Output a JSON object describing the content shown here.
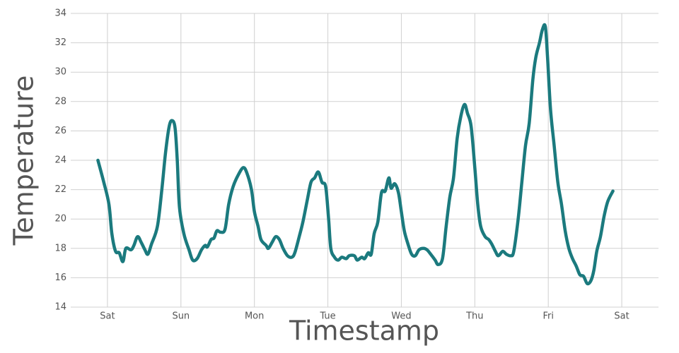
{
  "chart_data": {
    "type": "line",
    "x_label": "Timestamp",
    "y_label": "Temperature",
    "color": "#1b7a7e",
    "grid": true,
    "xlim": [
      -0.5,
      7.5
    ],
    "ylim": [
      14,
      34
    ],
    "xticks": [
      {
        "value": 0,
        "label": "Sat"
      },
      {
        "value": 1,
        "label": "Sun"
      },
      {
        "value": 2,
        "label": "Mon"
      },
      {
        "value": 3,
        "label": "Tue"
      },
      {
        "value": 4,
        "label": "Wed"
      },
      {
        "value": 5,
        "label": "Thu"
      },
      {
        "value": 6,
        "label": "Fri"
      },
      {
        "value": 7,
        "label": "Sat"
      }
    ],
    "yticks": [
      14,
      16,
      18,
      20,
      22,
      24,
      26,
      28,
      30,
      32,
      34
    ],
    "x": [
      -0.13,
      -0.05,
      0.02,
      0.06,
      0.11,
      0.16,
      0.21,
      0.25,
      0.32,
      0.36,
      0.41,
      0.46,
      0.51,
      0.55,
      0.6,
      0.68,
      0.74,
      0.79,
      0.84,
      0.88,
      0.92,
      0.95,
      0.98,
      1.04,
      1.11,
      1.16,
      1.22,
      1.28,
      1.33,
      1.36,
      1.41,
      1.45,
      1.49,
      1.54,
      1.6,
      1.65,
      1.71,
      1.78,
      1.85,
      1.9,
      1.96,
      2.0,
      2.05,
      2.09,
      2.16,
      2.19,
      2.24,
      2.29,
      2.34,
      2.39,
      2.45,
      2.51,
      2.55,
      2.61,
      2.66,
      2.72,
      2.77,
      2.82,
      2.87,
      2.92,
      2.97,
      3.01,
      3.04,
      3.09,
      3.14,
      3.19,
      3.25,
      3.29,
      3.36,
      3.4,
      3.46,
      3.5,
      3.55,
      3.59,
      3.63,
      3.68,
      3.73,
      3.78,
      3.83,
      3.86,
      3.91,
      3.96,
      4.0,
      4.04,
      4.09,
      4.14,
      4.19,
      4.24,
      4.3,
      4.35,
      4.4,
      4.46,
      4.5,
      4.56,
      4.61,
      4.66,
      4.71,
      4.76,
      4.81,
      4.86,
      4.9,
      4.95,
      5.0,
      5.04,
      5.08,
      5.14,
      5.19,
      5.23,
      5.28,
      5.32,
      5.38,
      5.43,
      5.49,
      5.53,
      5.59,
      5.64,
      5.69,
      5.74,
      5.79,
      5.83,
      5.88,
      5.92,
      5.96,
      5.99,
      6.03,
      6.08,
      6.13,
      6.18,
      6.23,
      6.28,
      6.33,
      6.38,
      6.43,
      6.48,
      6.53,
      6.58,
      6.62,
      6.66,
      6.71,
      6.76,
      6.81,
      6.88
    ],
    "values": [
      24,
      22.5,
      21,
      19,
      17.8,
      17.7,
      17.1,
      18,
      17.9,
      18.2,
      18.8,
      18.4,
      17.9,
      17.6,
      18.3,
      19.5,
      22,
      24.5,
      26.3,
      26.7,
      26.2,
      24,
      20.8,
      19,
      17.9,
      17.2,
      17.3,
      17.9,
      18.2,
      18.1,
      18.6,
      18.7,
      19.2,
      19.1,
      19.3,
      21,
      22.2,
      23,
      23.5,
      23.1,
      22,
      20.5,
      19.5,
      18.6,
      18.2,
      18,
      18.4,
      18.8,
      18.6,
      18,
      17.5,
      17.4,
      17.7,
      18.8,
      19.8,
      21.3,
      22.5,
      22.8,
      23.2,
      22.5,
      22.2,
      20,
      18,
      17.4,
      17.2,
      17.4,
      17.3,
      17.5,
      17.5,
      17.2,
      17.4,
      17.3,
      17.7,
      17.6,
      19,
      19.8,
      21.8,
      21.9,
      22.8,
      22.1,
      22.4,
      21.8,
      20.5,
      19.2,
      18.3,
      17.6,
      17.5,
      17.9,
      18,
      17.9,
      17.6,
      17.2,
      16.9,
      17.3,
      19.5,
      21.5,
      22.8,
      25.5,
      27,
      27.8,
      27.2,
      26.3,
      23.5,
      21,
      19.5,
      18.8,
      18.6,
      18.3,
      17.8,
      17.5,
      17.8,
      17.6,
      17.5,
      17.8,
      20,
      22.5,
      25,
      26.5,
      29.5,
      31,
      32,
      32.9,
      33.1,
      31,
      27.5,
      25,
      22.5,
      21,
      19.2,
      18,
      17.3,
      16.8,
      16.2,
      16.1,
      15.6,
      15.8,
      16.5,
      17.8,
      18.8,
      20.2,
      21.2,
      21.9
    ]
  }
}
